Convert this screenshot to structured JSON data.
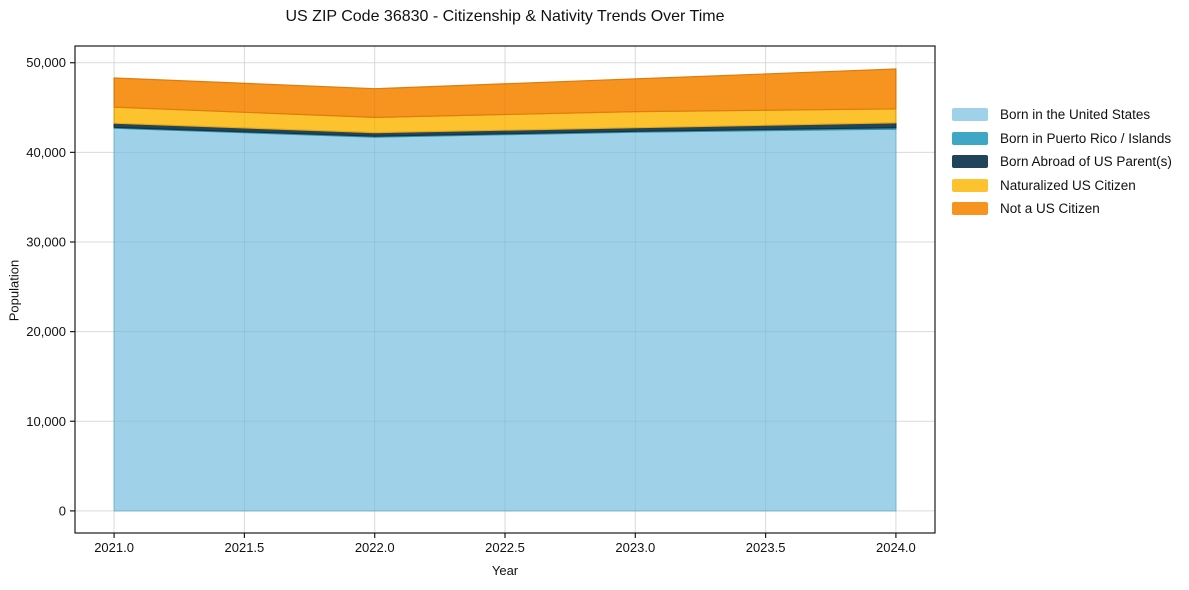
{
  "title": "US ZIP Code 36830 - Citizenship & Nativity Trends Over Time",
  "chart_data": {
    "type": "area",
    "stacked": true,
    "title": "US ZIP Code 36830 - Citizenship & Nativity Trends Over Time",
    "xlabel": "Year",
    "ylabel": "Population",
    "x": [
      2021,
      2022,
      2023,
      2024
    ],
    "series": [
      {
        "name": "Born in the United States",
        "color": "#9fd2e8",
        "edge": "#85c3de",
        "values": [
          42700,
          41700,
          42250,
          42600
        ]
      },
      {
        "name": "Born in Puerto Rico / Islands",
        "color": "#3fa7c6",
        "edge": "#3090ad",
        "values": [
          100,
          100,
          100,
          150
        ]
      },
      {
        "name": "Born Abroad of US Parent(s)",
        "color": "#20455a",
        "edge": "#16333f",
        "values": [
          450,
          400,
          400,
          550
        ]
      },
      {
        "name": "Naturalized US Citizen",
        "color": "#fdc32f",
        "edge": "#e8a912",
        "values": [
          1800,
          1700,
          1800,
          1550
        ]
      },
      {
        "name": "Not a US Citizen",
        "color": "#f7941f",
        "edge": "#de7d0d",
        "values": [
          3250,
          3200,
          3650,
          4450
        ]
      }
    ],
    "totals": [
      48300,
      47100,
      48200,
      49300
    ],
    "xlim": [
      2020.85,
      2024.15
    ],
    "ylim": [
      -2466,
      51866
    ],
    "xticks": {
      "values": [
        2021.0,
        2021.5,
        2022.0,
        2022.5,
        2023.0,
        2023.5,
        2024.0
      ],
      "labels": [
        "2021.0",
        "2021.5",
        "2022.0",
        "2022.5",
        "2023.0",
        "2023.5",
        "2024.0"
      ]
    },
    "yticks": {
      "values": [
        0,
        10000,
        20000,
        30000,
        40000,
        50000
      ],
      "labels": [
        "0",
        "10,000",
        "20,000",
        "30,000",
        "40,000",
        "50,000"
      ]
    },
    "grid": true,
    "grid_color": "#e8e8e8",
    "spine_color": "#1a1a1a",
    "legend_position": "right"
  }
}
